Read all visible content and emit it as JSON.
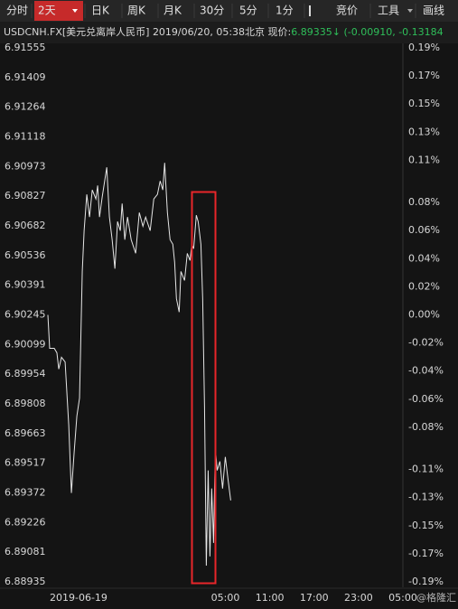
{
  "toolbar": {
    "tabs": [
      "分时",
      "2天",
      "日K",
      "周K",
      "月K",
      "30分",
      "5分",
      "1分"
    ],
    "active": 1,
    "right": [
      "竞价",
      "工具",
      "画线"
    ]
  },
  "header": {
    "symbol": "USDCNH.FX[美元兑离岸人民币]",
    "datetime": "2019/06/20, 05:38北京",
    "price_label": "现价:",
    "price": "6.89335",
    "price_arrow": "↓",
    "change": "(-0.00910, -0.13184"
  },
  "chart_data": {
    "type": "line",
    "color": "#e6e6e6",
    "x": [
      0,
      0.24,
      0.86,
      1.22,
      1.47,
      1.84,
      2.33,
      2.82,
      3.18,
      3.55,
      3.92,
      4.28,
      4.65,
      4.9,
      5.26,
      5.63,
      6.0,
      6.49,
      6.73,
      6.98,
      7.34,
      7.96,
      8.32,
      8.69,
      9.06,
      9.42,
      9.79,
      10.04,
      10.4,
      10.77,
      11.26,
      11.87,
      12.36,
      12.85,
      13.22,
      13.83,
      14.32,
      14.81,
      15.18,
      15.54,
      15.79,
      16.16,
      16.52,
      16.89,
      17.14,
      17.38,
      17.75,
      17.99,
      18.48,
      18.85,
      19.22,
      19.46,
      19.71,
      20.07,
      20.32,
      20.69,
      20.93,
      21.18,
      21.42,
      21.67,
      21.91,
      22.15,
      22.4,
      22.64,
      22.89,
      23.26,
      23.62,
      23.99,
      24.36,
      24.72
    ],
    "values": [
      6.90245,
      6.90081,
      6.90081,
      6.90059,
      6.89979,
      6.90037,
      6.90014,
      6.89704,
      6.89371,
      6.8957,
      6.89748,
      6.89837,
      6.90458,
      6.90658,
      6.90836,
      6.90725,
      6.90858,
      6.90814,
      6.9088,
      6.90725,
      6.90822,
      6.90969,
      6.90725,
      6.90614,
      6.90472,
      6.90703,
      6.90658,
      6.90791,
      6.90614,
      6.90725,
      6.90614,
      6.90547,
      6.90747,
      6.9068,
      6.90725,
      6.90658,
      6.90814,
      6.90836,
      6.90902,
      6.90858,
      6.90991,
      6.90747,
      6.90614,
      6.90592,
      6.90503,
      6.90325,
      6.90259,
      6.90458,
      6.90414,
      6.90547,
      6.90512,
      6.90592,
      6.9057,
      6.90734,
      6.90703,
      6.90592,
      6.90325,
      6.89792,
      6.89015,
      6.89482,
      6.8906,
      6.89393,
      6.89126,
      6.89593,
      6.89482,
      6.89526,
      6.89393,
      6.89548,
      6.89437,
      6.89335
    ],
    "xlim": [
      0,
      48
    ],
    "xticks": [
      {
        "value": 0,
        "label": "2019-06-19"
      },
      {
        "value": 24,
        "label": "05:00"
      },
      {
        "value": 30,
        "label": "11:00"
      },
      {
        "value": 36,
        "label": "17:00"
      },
      {
        "value": 42,
        "label": "23:00"
      },
      {
        "value": 48,
        "label": "05:00"
      }
    ],
    "ylim": [
      6.88935,
      6.91555
    ],
    "yticks": [
      6.91555,
      6.91409,
      6.91264,
      6.91118,
      6.90973,
      6.90827,
      6.90682,
      6.90536,
      6.90391,
      6.90245,
      6.90099,
      6.89954,
      6.89808,
      6.89663,
      6.89517,
      6.89372,
      6.89226,
      6.89081,
      6.88935
    ],
    "y2lim": [
      -0.19,
      0.19
    ],
    "y2ticks": [
      {
        "value": 0.19,
        "label": "0.19%"
      },
      {
        "value": 0.17,
        "label": "0.17%"
      },
      {
        "value": 0.15,
        "label": "0.15%"
      },
      {
        "value": 0.13,
        "label": "0.13%"
      },
      {
        "value": 0.11,
        "label": "0.11%"
      },
      {
        "value": 0.08,
        "label": "0.08%"
      },
      {
        "value": 0.06,
        "label": "0.06%"
      },
      {
        "value": 0.04,
        "label": "0.04%"
      },
      {
        "value": 0.02,
        "label": "0.02%"
      },
      {
        "value": 0,
        "label": "0.00%"
      },
      {
        "value": -0.02,
        "label": "-0.02%"
      },
      {
        "value": -0.04,
        "label": "-0.04%"
      },
      {
        "value": -0.06,
        "label": "-0.06%"
      },
      {
        "value": -0.08,
        "label": "-0.08%"
      },
      {
        "value": -0.11,
        "label": "-0.11%"
      },
      {
        "value": -0.13,
        "label": "-0.13%"
      },
      {
        "value": -0.15,
        "label": "-0.15%"
      },
      {
        "value": -0.17,
        "label": "-0.17%"
      },
      {
        "value": -0.19,
        "label": "-0.19%"
      }
    ],
    "up_color": "#f23b30",
    "down_color": "#2fbf5a",
    "flat_color": "#ffffff",
    "grid": false
  },
  "watermark": "@格隆汇"
}
